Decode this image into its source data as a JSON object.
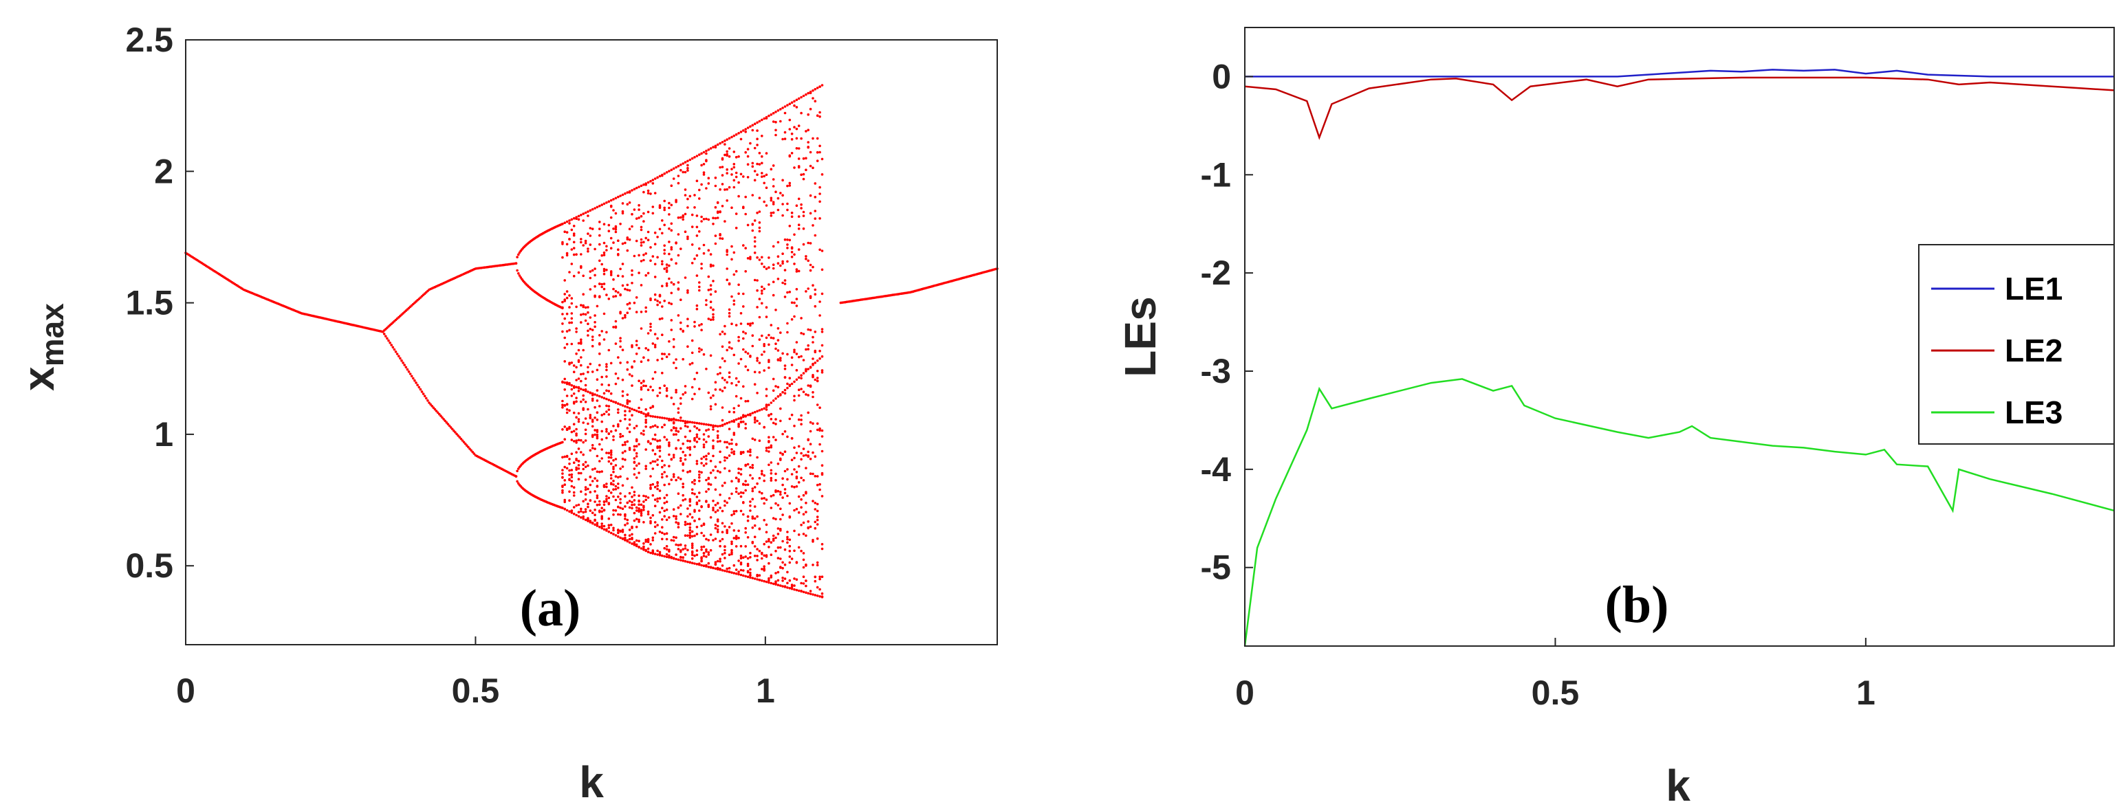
{
  "chart_data": [
    {
      "type": "scatter",
      "panel": "(a)",
      "xlabel": "k",
      "ylabel": "x",
      "ylabel_sub": "max",
      "xlim": [
        0,
        1.4
      ],
      "ylim": [
        0.2,
        2.5
      ],
      "xticks": [
        0,
        0.5,
        1
      ],
      "xtick_labels": [
        "0",
        "0.5",
        "1"
      ],
      "yticks": [
        0.5,
        1,
        1.5,
        2,
        2.5
      ],
      "ytick_labels": [
        "0.5",
        "1",
        "1.5",
        "2",
        "2.5"
      ],
      "grid": false,
      "color": "#ff0000",
      "description_points": {
        "single_branch_left": [
          [
            0,
            1.69
          ],
          [
            0.1,
            1.55
          ],
          [
            0.2,
            1.46
          ],
          [
            0.3,
            1.41
          ],
          [
            0.34,
            1.39
          ]
        ],
        "period2_upper": [
          [
            0.34,
            1.39
          ],
          [
            0.42,
            1.55
          ],
          [
            0.5,
            1.63
          ],
          [
            0.57,
            1.65
          ]
        ],
        "period2_lower": [
          [
            0.34,
            1.39
          ],
          [
            0.42,
            1.12
          ],
          [
            0.5,
            0.92
          ],
          [
            0.57,
            0.84
          ]
        ],
        "period4_upper_bubble": [
          [
            0.57,
            1.65
          ],
          [
            0.6,
            1.76
          ],
          [
            0.65,
            1.8
          ],
          [
            0.6,
            1.55
          ],
          [
            0.65,
            1.48
          ]
        ],
        "period4_lower_bubble": [
          [
            0.57,
            0.84
          ],
          [
            0.6,
            0.93
          ],
          [
            0.65,
            0.97
          ],
          [
            0.6,
            0.75
          ],
          [
            0.65,
            0.72
          ]
        ],
        "chaos_upper_envelope": [
          [
            0.65,
            1.8
          ],
          [
            0.8,
            1.96
          ],
          [
            0.95,
            2.14
          ],
          [
            1.1,
            2.33
          ]
        ],
        "chaos_lower_envelope": [
          [
            0.65,
            0.72
          ],
          [
            0.8,
            0.55
          ],
          [
            0.95,
            0.47
          ],
          [
            1.1,
            0.38
          ]
        ],
        "inner_upper_arc": [
          [
            0.65,
            1.2
          ],
          [
            0.8,
            1.07
          ],
          [
            0.92,
            1.03
          ],
          [
            1.0,
            1.1
          ],
          [
            1.1,
            1.3
          ]
        ],
        "single_branch_right": [
          [
            1.13,
            1.5
          ],
          [
            1.25,
            1.54
          ],
          [
            1.4,
            1.63
          ]
        ]
      }
    },
    {
      "type": "line",
      "panel": "(b)",
      "xlabel": "k",
      "ylabel": "LEs",
      "xlim": [
        0,
        1.4
      ],
      "ylim": [
        -5.8,
        0.5
      ],
      "xticks": [
        0,
        0.5,
        1
      ],
      "xtick_labels": [
        "0",
        "0.5",
        "1"
      ],
      "yticks": [
        0,
        -1,
        -2,
        -3,
        -4,
        -5
      ],
      "ytick_labels": [
        "0",
        "-1",
        "-2",
        "-3",
        "-4",
        "-5"
      ],
      "grid": false,
      "legend": "right",
      "series": [
        {
          "name": "LE1",
          "color": "#2020c8",
          "x": [
            0,
            0.1,
            0.2,
            0.3,
            0.5,
            0.6,
            0.7,
            0.75,
            0.8,
            0.85,
            0.9,
            0.95,
            1.0,
            1.05,
            1.1,
            1.2,
            1.4
          ],
          "y": [
            0,
            0,
            0,
            0,
            0,
            0,
            0.04,
            0.06,
            0.05,
            0.07,
            0.06,
            0.07,
            0.03,
            0.06,
            0.02,
            0,
            0
          ]
        },
        {
          "name": "LE2",
          "color": "#c00000",
          "x": [
            0,
            0.05,
            0.1,
            0.12,
            0.14,
            0.2,
            0.3,
            0.34,
            0.4,
            0.43,
            0.46,
            0.55,
            0.6,
            0.65,
            0.8,
            1.0,
            1.1,
            1.15,
            1.2,
            1.3,
            1.4
          ],
          "y": [
            -0.1,
            -0.13,
            -0.25,
            -0.62,
            -0.28,
            -0.12,
            -0.03,
            -0.02,
            -0.08,
            -0.24,
            -0.1,
            -0.03,
            -0.1,
            -0.03,
            -0.01,
            -0.01,
            -0.03,
            -0.08,
            -0.06,
            -0.1,
            -0.14
          ]
        },
        {
          "name": "LE3",
          "color": "#22dd22",
          "x": [
            0,
            0.02,
            0.05,
            0.1,
            0.12,
            0.14,
            0.2,
            0.3,
            0.35,
            0.4,
            0.43,
            0.45,
            0.5,
            0.6,
            0.65,
            0.7,
            0.72,
            0.75,
            0.8,
            0.85,
            0.9,
            0.95,
            1.0,
            1.03,
            1.05,
            1.1,
            1.14,
            1.15,
            1.2,
            1.3,
            1.4
          ],
          "y": [
            -5.8,
            -4.8,
            -4.3,
            -3.6,
            -3.18,
            -3.38,
            -3.28,
            -3.12,
            -3.08,
            -3.2,
            -3.15,
            -3.35,
            -3.48,
            -3.62,
            -3.68,
            -3.62,
            -3.56,
            -3.68,
            -3.72,
            -3.76,
            -3.78,
            -3.82,
            -3.85,
            -3.8,
            -3.95,
            -3.97,
            -4.42,
            -4.0,
            -4.1,
            -4.25,
            -4.42
          ]
        }
      ]
    }
  ]
}
